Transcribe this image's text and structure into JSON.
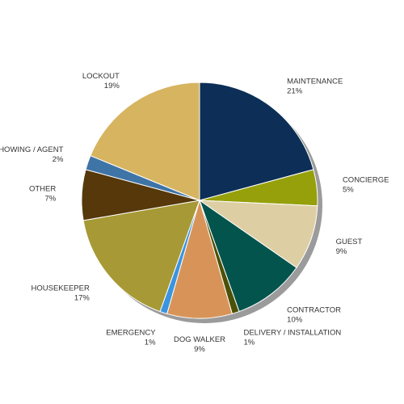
{
  "chart_data": {
    "type": "pie",
    "title": "",
    "legend": "none",
    "start_angle_deg": 0,
    "direction": "clockwise",
    "slices": [
      {
        "label": "MAINTENANCE",
        "value": 21,
        "value_label": "21%",
        "color": "#0d2f57"
      },
      {
        "label": "CONCIERGE",
        "value": 5,
        "value_label": "5%",
        "color": "#96a00b"
      },
      {
        "label": "GUEST",
        "value": 9,
        "value_label": "9%",
        "color": "#ddcea4"
      },
      {
        "label": "CONTRACTOR",
        "value": 10,
        "value_label": "10%",
        "color": "#03544c"
      },
      {
        "label": "DELIVERY / INSTALLATION",
        "value": 1,
        "value_label": "1%",
        "color": "#4b5108"
      },
      {
        "label": "DOG WALKER",
        "value": 9,
        "value_label": "9%",
        "color": "#d89458"
      },
      {
        "label": "EMERGENCY",
        "value": 1,
        "value_label": "1%",
        "color": "#3b94e0"
      },
      {
        "label": "HOUSEKEEPER",
        "value": 17,
        "value_label": "17%",
        "color": "#a79935"
      },
      {
        "label": "OTHER",
        "value": 7,
        "value_label": "7%",
        "color": "#56380a"
      },
      {
        "label": "SHOWING / AGENT",
        "value": 2,
        "value_label": "2%",
        "color": "#3f74a7"
      },
      {
        "label": "LOCKOUT",
        "value": 19,
        "value_label": "19%",
        "color": "#d7b460"
      }
    ]
  }
}
